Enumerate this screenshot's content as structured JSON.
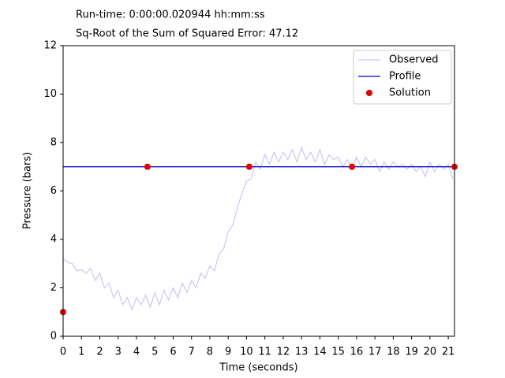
{
  "chart_data": {
    "type": "line",
    "annotations": [
      "Run-time: 0:00:00.020944 hh:mm:ss",
      "Sq-Root of the Sum of Squared Error: 47.12"
    ],
    "xlabel": "Time (seconds)",
    "ylabel": "Pressure (bars)",
    "xlim": [
      0,
      21.34
    ],
    "ylim": [
      0,
      12
    ],
    "xticks": [
      0,
      1,
      2,
      3,
      4,
      5,
      6,
      7,
      8,
      9,
      10,
      11,
      12,
      13,
      14,
      15,
      16,
      17,
      18,
      19,
      20,
      21
    ],
    "yticks": [
      0,
      2,
      4,
      6,
      8,
      10,
      12
    ],
    "legend": "upper right",
    "series": [
      {
        "name": "Observed",
        "color": "#c8c8f4",
        "style": "line",
        "x": [
          0,
          0.25,
          0.5,
          0.75,
          1,
          1.25,
          1.5,
          1.75,
          2,
          2.25,
          2.5,
          2.75,
          3,
          3.25,
          3.5,
          3.75,
          4,
          4.25,
          4.5,
          4.75,
          5,
          5.25,
          5.5,
          5.75,
          6,
          6.25,
          6.5,
          6.75,
          7,
          7.25,
          7.5,
          7.75,
          8,
          8.25,
          8.5,
          8.75,
          9,
          9.25,
          9.5,
          9.75,
          10,
          10.25,
          10.5,
          10.75,
          11,
          11.25,
          11.5,
          11.75,
          12,
          12.25,
          12.5,
          12.75,
          13,
          13.25,
          13.5,
          13.75,
          14,
          14.25,
          14.5,
          14.75,
          15,
          15.25,
          15.5,
          15.75,
          16,
          16.25,
          16.5,
          16.75,
          17,
          17.25,
          17.5,
          17.75,
          18,
          18.25,
          18.5,
          18.75,
          19,
          19.25,
          19.5,
          19.75,
          20,
          20.25,
          20.5,
          20.75,
          21,
          21.25
        ],
        "values": [
          3.2,
          3.05,
          3.0,
          2.7,
          2.75,
          2.6,
          2.8,
          2.3,
          2.6,
          2.0,
          2.2,
          1.6,
          1.9,
          1.3,
          1.6,
          1.1,
          1.6,
          1.3,
          1.7,
          1.2,
          1.8,
          1.3,
          1.9,
          1.5,
          2.0,
          1.6,
          2.2,
          1.8,
          2.3,
          2.0,
          2.6,
          2.4,
          2.9,
          2.7,
          3.4,
          3.6,
          4.3,
          4.6,
          5.3,
          5.9,
          6.4,
          6.5,
          7.2,
          6.9,
          7.5,
          7.1,
          7.6,
          7.2,
          7.6,
          7.3,
          7.7,
          7.2,
          7.8,
          7.3,
          7.6,
          7.2,
          7.7,
          7.1,
          7.5,
          7.3,
          7.4,
          7.0,
          7.3,
          6.9,
          7.4,
          7.0,
          7.4,
          7.1,
          7.3,
          6.8,
          7.2,
          6.9,
          7.2,
          7.0,
          7.1,
          6.9,
          7.1,
          6.8,
          7.0,
          6.6,
          7.2,
          6.8,
          7.1,
          6.9,
          7.1,
          6.5
        ]
      },
      {
        "name": "Profile",
        "color": "#0000cc",
        "style": "line",
        "x": [
          0,
          21.34
        ],
        "values": [
          7,
          7
        ]
      },
      {
        "name": "Solution",
        "color": "#e00000",
        "style": "markers",
        "x": [
          0,
          4.6,
          10.15,
          15.75,
          21.34
        ],
        "values": [
          1,
          7,
          7,
          7,
          7
        ]
      }
    ]
  }
}
